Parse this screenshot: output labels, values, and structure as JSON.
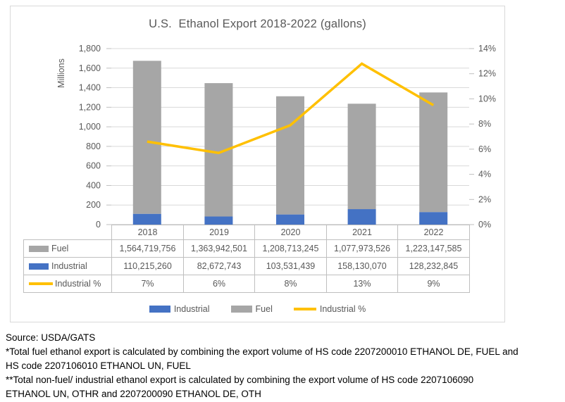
{
  "colors": {
    "industrial_blue": "#4472C4",
    "fuel_gray": "#A6A6A6",
    "industrial_pct_yellow": "#FFC000",
    "gridline": "#D9D9D9",
    "axis": "#BFBFBF",
    "table_border": "#BFBFBF",
    "text_gray": "#595959",
    "footer_text": "#000000"
  },
  "chart": {
    "title": "U.S.  Ethanol Export 2018-2022 (gallons)",
    "left_axis": {
      "title": "Millions",
      "ticks": [
        "0",
        "200",
        "400",
        "600",
        "800",
        "1,000",
        "1,200",
        "1,400",
        "1,600",
        "1,800"
      ]
    },
    "right_axis": {
      "ticks": [
        "0%",
        "2%",
        "4%",
        "6%",
        "8%",
        "10%",
        "12%",
        "14%"
      ]
    },
    "legend": [
      {
        "label": "Industrial",
        "swatch": "rect",
        "color": "#4472C4"
      },
      {
        "label": "Fuel",
        "swatch": "rect",
        "color": "#A6A6A6"
      },
      {
        "label": "Industrial %",
        "swatch": "line",
        "color": "#FFC000"
      }
    ]
  },
  "chart_data": {
    "type": "combo-stacked-bar-line",
    "title": "U.S.  Ethanol Export 2018-2022 (gallons)",
    "ylabel": "Millions",
    "categories": [
      "2018",
      "2019",
      "2020",
      "2021",
      "2022"
    ],
    "left_axis_range_millions": [
      0,
      1800
    ],
    "right_axis_range_pct": [
      0,
      14
    ],
    "grid": true,
    "legend_position": "bottom",
    "series": [
      {
        "name": "Industrial",
        "chart": "bar",
        "stack": "total",
        "color": "#4472C4",
        "values_gallons": [
          110215260,
          82672743,
          103531439,
          158130070,
          128232845
        ],
        "display": [
          "110,215,260",
          "82,672,743",
          "103,531,439",
          "158,130,070",
          "128,232,845"
        ]
      },
      {
        "name": "Fuel",
        "chart": "bar",
        "stack": "total",
        "color": "#A6A6A6",
        "values_gallons": [
          1564719756,
          1363942501,
          1208713245,
          1077973526,
          1223147585
        ],
        "display": [
          "1,564,719,756",
          "1,363,942,501",
          "1,208,713,245",
          "1,077,973,526",
          "1,223,147,585"
        ]
      },
      {
        "name": "Industrial %",
        "chart": "line",
        "axis": "right",
        "color": "#FFC000",
        "values_pct": [
          6.6,
          5.7,
          7.9,
          12.8,
          9.5
        ],
        "display": [
          "7%",
          "6%",
          "8%",
          "13%",
          "9%"
        ]
      }
    ]
  },
  "table": {
    "row_order": [
      "Fuel",
      "Industrial",
      "Industrial %"
    ]
  },
  "footer": {
    "lines": [
      "Source: USDA/GATS",
      "*Total fuel ethanol export is calculated by combining the export volume of HS code 2207200010 ETHANOL DE, FUEL and",
      "HS code 2207106010 ETHANOL UN, FUEL",
      "**Total non-fuel/ industrial ethanol export is calculated by combining the export volume of HS code 2207106090",
      "ETHANOL UN, OTHR and 2207200090 ETHANOL DE, OTH"
    ]
  }
}
